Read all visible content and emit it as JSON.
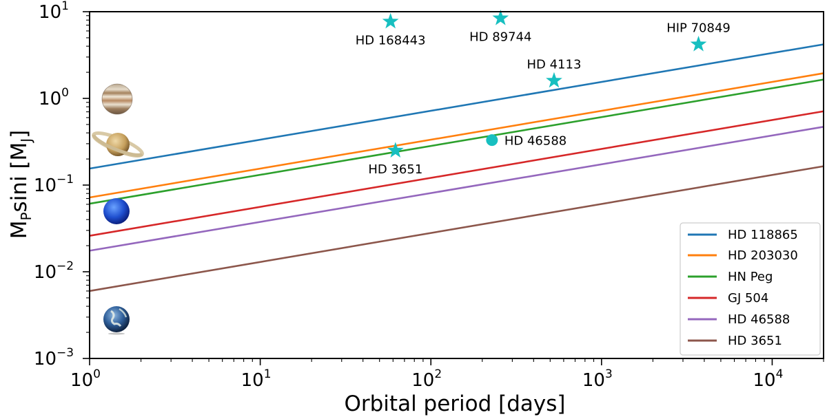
{
  "chart_data": {
    "type": "line",
    "xscale": "log",
    "yscale": "log",
    "xlim": [
      1,
      20000
    ],
    "ylim": [
      0.001,
      10
    ],
    "xlabel": "Orbital period [days]",
    "ylabel": "MPsini [MJ]",
    "ylabel_parts": {
      "base": "M",
      "sub1": "P",
      "mid": "sini [M",
      "sub2": "J",
      "end": "]"
    },
    "x_ticks": [
      {
        "value": 1,
        "base": "10",
        "exp": "0"
      },
      {
        "value": 10,
        "base": "10",
        "exp": "1"
      },
      {
        "value": 100,
        "base": "10",
        "exp": "2"
      },
      {
        "value": 1000,
        "base": "10",
        "exp": "3"
      },
      {
        "value": 10000,
        "base": "10",
        "exp": "4"
      }
    ],
    "y_ticks": [
      {
        "value": 0.001,
        "base": "10",
        "exp": "−3"
      },
      {
        "value": 0.01,
        "base": "10",
        "exp": "−2"
      },
      {
        "value": 0.1,
        "base": "10",
        "exp": "−1"
      },
      {
        "value": 1,
        "base": "10",
        "exp": "0"
      },
      {
        "value": 10,
        "base": "10",
        "exp": "1"
      }
    ],
    "series": [
      {
        "name": "HD 118865",
        "color": "#1f77b4",
        "x": [
          1,
          20000
        ],
        "y": [
          0.155,
          4.2
        ]
      },
      {
        "name": "HD 203030",
        "color": "#ff7f0e",
        "x": [
          1,
          20000
        ],
        "y": [
          0.072,
          1.95
        ]
      },
      {
        "name": "HN Peg",
        "color": "#2ca02c",
        "x": [
          1,
          20000
        ],
        "y": [
          0.061,
          1.65
        ]
      },
      {
        "name": "GJ 504",
        "color": "#d62728",
        "x": [
          1,
          20000
        ],
        "y": [
          0.026,
          0.71
        ]
      },
      {
        "name": "HD 46588",
        "color": "#9467bd",
        "x": [
          1,
          20000
        ],
        "y": [
          0.0175,
          0.47
        ]
      },
      {
        "name": "HD 3651",
        "color": "#8c564b",
        "x": [
          1,
          20000
        ],
        "y": [
          0.006,
          0.165
        ]
      }
    ],
    "planets": [
      {
        "name": "HD 168443",
        "marker": "star",
        "x": 58,
        "y": 7.7,
        "label_pos": "below"
      },
      {
        "name": "HD 89744",
        "marker": "star",
        "x": 256,
        "y": 8.4,
        "label_pos": "below"
      },
      {
        "name": "HIP 70849",
        "marker": "star",
        "x": 3700,
        "y": 4.2,
        "label_pos": "above"
      },
      {
        "name": "HD 4113",
        "marker": "star",
        "x": 527,
        "y": 1.6,
        "label_pos": "above"
      },
      {
        "name": "HD 46588",
        "marker": "circle",
        "x": 228,
        "y": 0.33,
        "label_pos": "right"
      },
      {
        "name": "HD 3651",
        "marker": "star",
        "x": 62,
        "y": 0.25,
        "label_pos": "below"
      }
    ],
    "marker_color": "#17bfc0",
    "reference_planets": [
      {
        "name": "Jupiter",
        "icon": "jupiter-icon",
        "y": 1.0
      },
      {
        "name": "Saturn",
        "icon": "saturn-icon",
        "y": 0.3
      },
      {
        "name": "Neptune",
        "icon": "neptune-icon",
        "y": 0.054
      },
      {
        "name": "Earth",
        "icon": "earth-icon",
        "y": 0.0031
      }
    ],
    "legend": {
      "placement": "lower-right",
      "entries": [
        "HD 118865",
        "HD 203030",
        "HN Peg",
        "GJ 504",
        "HD 46588",
        "HD 3651"
      ]
    }
  }
}
